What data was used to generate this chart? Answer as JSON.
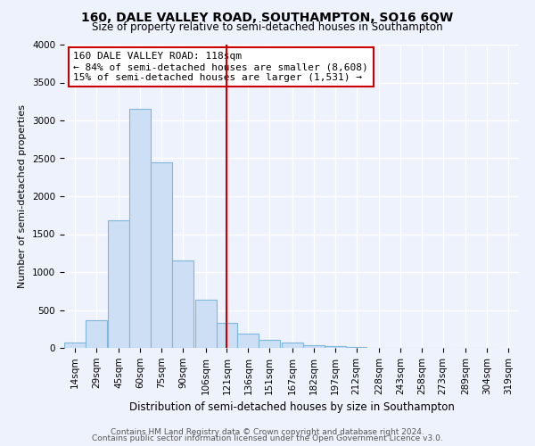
{
  "title": "160, DALE VALLEY ROAD, SOUTHAMPTON, SO16 6QW",
  "subtitle": "Size of property relative to semi-detached houses in Southampton",
  "xlabel": "Distribution of semi-detached houses by size in Southampton",
  "ylabel": "Number of semi-detached properties",
  "bin_labels": [
    "14sqm",
    "29sqm",
    "45sqm",
    "60sqm",
    "75sqm",
    "90sqm",
    "106sqm",
    "121sqm",
    "136sqm",
    "151sqm",
    "167sqm",
    "182sqm",
    "197sqm",
    "212sqm",
    "228sqm",
    "243sqm",
    "258sqm",
    "273sqm",
    "289sqm",
    "304sqm",
    "319sqm"
  ],
  "bin_centers": [
    14,
    29,
    45,
    60,
    75,
    90,
    106,
    121,
    136,
    151,
    167,
    182,
    197,
    212,
    228,
    243,
    258,
    273,
    289,
    304,
    319
  ],
  "bar_heights": [
    75,
    360,
    1680,
    3150,
    2450,
    1150,
    630,
    330,
    185,
    110,
    65,
    30,
    20,
    10,
    5,
    3,
    3,
    0,
    0,
    0
  ],
  "bar_color": "#ccdff5",
  "bar_edge_color": "#7fb8dc",
  "vline_x": 121,
  "vline_color": "#cc0000",
  "annotation_title": "160 DALE VALLEY ROAD: 118sqm",
  "annotation_line1": "← 84% of semi-detached houses are smaller (8,608)",
  "annotation_line2": "15% of semi-detached houses are larger (1,531) →",
  "annotation_box_facecolor": "#ffffff",
  "annotation_box_edgecolor": "#cc0000",
  "ylim": [
    0,
    4000
  ],
  "yticks": [
    0,
    500,
    1000,
    1500,
    2000,
    2500,
    3000,
    3500,
    4000
  ],
  "footer1": "Contains HM Land Registry data © Crown copyright and database right 2024.",
  "footer2": "Contains public sector information licensed under the Open Government Licence v3.0.",
  "background_color": "#eef2fc",
  "grid_color": "#ffffff",
  "title_fontsize": 10,
  "subtitle_fontsize": 8.5,
  "ylabel_fontsize": 8,
  "xlabel_fontsize": 8.5,
  "tick_fontsize": 7.5,
  "footer_fontsize": 6.5
}
